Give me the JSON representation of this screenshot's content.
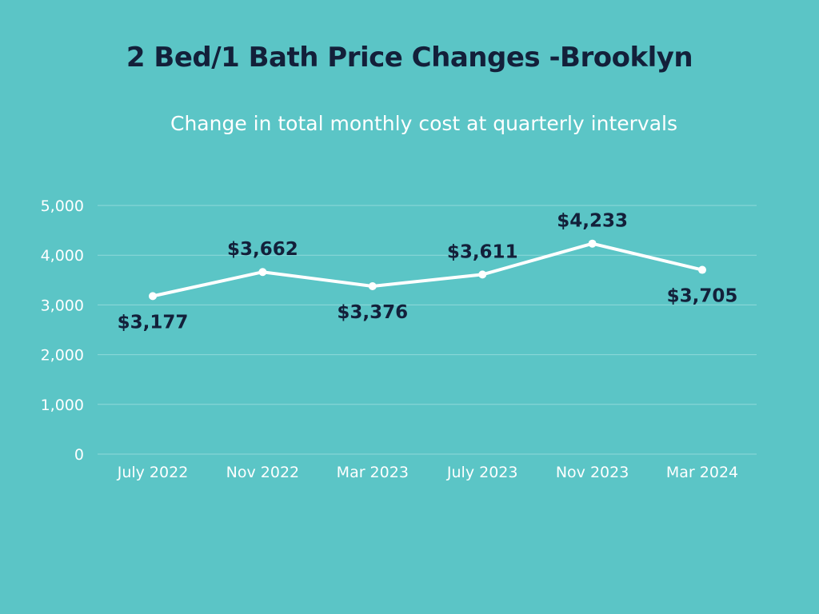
{
  "chart_data": {
    "type": "line",
    "title": "2 Bed/1 Bath Price Changes -Brooklyn",
    "subtitle": "Change in total monthly cost at quarterly intervals",
    "categories": [
      "July 2022",
      "Nov 2022",
      "Mar 2023",
      "July 2023",
      "Nov 2023",
      "Mar 2024"
    ],
    "values": [
      3177,
      3662,
      3376,
      3611,
      4233,
      3705
    ],
    "data_labels": [
      "$3,177",
      "$3,662",
      "$3,376",
      "$3,611",
      "$4,233",
      "$3,705"
    ],
    "label_positions": [
      "below",
      "above",
      "below",
      "above",
      "above",
      "below"
    ],
    "y_ticks": [
      0,
      1000,
      2000,
      3000,
      4000,
      5000
    ],
    "y_tick_labels": [
      "0",
      "1,000",
      "2,000",
      "3,000",
      "4,000",
      "5,000"
    ],
    "ylim": [
      0,
      5000
    ],
    "xlabel": "",
    "ylabel": "",
    "grid": true,
    "legend": "none"
  },
  "colors": {
    "background": "#5bc5c6",
    "line": "#ffffff",
    "grid": "#8fd9da",
    "title": "#13203a",
    "data_label": "#13203a",
    "tick_text": "#ffffff"
  }
}
